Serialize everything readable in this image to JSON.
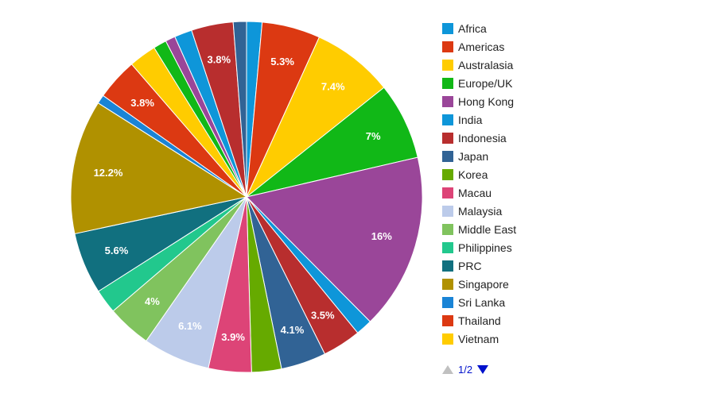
{
  "chart_data": {
    "type": "pie",
    "slices": [
      {
        "name": "Africa",
        "value": 1.4,
        "color": "#0e96d9",
        "label": ""
      },
      {
        "name": "Americas",
        "value": 5.3,
        "color": "#dc3912",
        "label": "5.3%"
      },
      {
        "name": "Australasia",
        "value": 7.4,
        "color": "#ffcc00",
        "label": "7.4%"
      },
      {
        "name": "Europe/UK",
        "value": 7.0,
        "color": "#11b817",
        "label": "7%"
      },
      {
        "name": "Hong Kong",
        "value": 16.0,
        "color": "#9a4699",
        "label": "16%"
      },
      {
        "name": "India",
        "value": 1.5,
        "color": "#0e96d9",
        "label": ""
      },
      {
        "name": "Indonesia",
        "value": 3.5,
        "color": "#b82e2e",
        "label": "3.5%"
      },
      {
        "name": "Japan",
        "value": 4.1,
        "color": "#316395",
        "label": "4.1%"
      },
      {
        "name": "Korea",
        "value": 2.7,
        "color": "#66aa00",
        "label": ""
      },
      {
        "name": "Macau",
        "value": 3.9,
        "color": "#dd4477",
        "label": "3.9%"
      },
      {
        "name": "Malaysia",
        "value": 6.1,
        "color": "#bccbea",
        "label": "6.1%"
      },
      {
        "name": "Middle East",
        "value": 4.0,
        "color": "#80c35e",
        "label": "4%"
      },
      {
        "name": "Philippines",
        "value": 2.2,
        "color": "#22c88d",
        "label": ""
      },
      {
        "name": "PRC",
        "value": 5.6,
        "color": "#11707f",
        "label": "5.6%"
      },
      {
        "name": "Singapore",
        "value": 12.2,
        "color": "#b09100",
        "label": "12.2%"
      },
      {
        "name": "Sri Lanka",
        "value": 0.8,
        "color": "#1a84d6",
        "label": ""
      },
      {
        "name": "Thailand",
        "value": 3.8,
        "color": "#dc3912",
        "label": "3.8%"
      },
      {
        "name": "Vietnam",
        "value": 2.5,
        "color": "#ffcc00",
        "label": ""
      },
      {
        "name": "",
        "value": 1.2,
        "color": "#11b817",
        "label": ""
      },
      {
        "name": "",
        "value": 0.9,
        "color": "#9a4699",
        "label": ""
      },
      {
        "name": "",
        "value": 1.6,
        "color": "#0e96d9",
        "label": ""
      },
      {
        "name": "",
        "value": 3.8,
        "color": "#b82e2e",
        "label": "3.8%"
      },
      {
        "name": "",
        "value": 1.2,
        "color": "#316395",
        "label": ""
      }
    ]
  },
  "legend": {
    "items": [
      {
        "name": "Africa",
        "color": "#0e96d9"
      },
      {
        "name": "Americas",
        "color": "#dc3912"
      },
      {
        "name": "Australasia",
        "color": "#ffcc00"
      },
      {
        "name": "Europe/UK",
        "color": "#11b817"
      },
      {
        "name": "Hong Kong",
        "color": "#9a4699"
      },
      {
        "name": "India",
        "color": "#0e96d9"
      },
      {
        "name": "Indonesia",
        "color": "#b82e2e"
      },
      {
        "name": "Japan",
        "color": "#316395"
      },
      {
        "name": "Korea",
        "color": "#66aa00"
      },
      {
        "name": "Macau",
        "color": "#dd4477"
      },
      {
        "name": "Malaysia",
        "color": "#bccbea"
      },
      {
        "name": "Middle East",
        "color": "#80c35e"
      },
      {
        "name": "Philippines",
        "color": "#22c88d"
      },
      {
        "name": "PRC",
        "color": "#11707f"
      },
      {
        "name": "Singapore",
        "color": "#b09100"
      },
      {
        "name": "Sri Lanka",
        "color": "#1a84d6"
      },
      {
        "name": "Thailand",
        "color": "#dc3912"
      },
      {
        "name": "Vietnam",
        "color": "#ffcc00"
      }
    ],
    "pager": {
      "text": "1/2",
      "prev_icon": "triangle-up-icon",
      "next_icon": "triangle-down-icon"
    }
  }
}
